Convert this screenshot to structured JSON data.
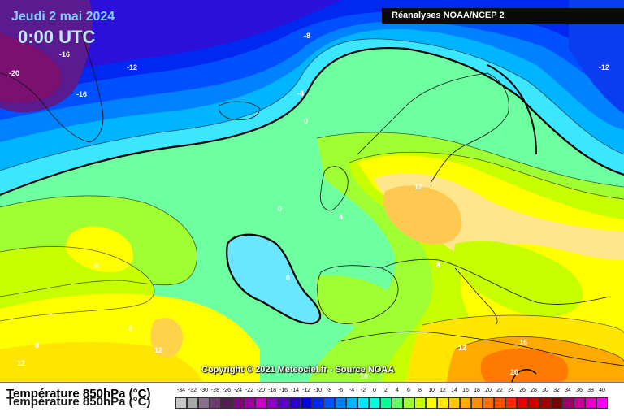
{
  "header": {
    "date": "Jeudi 2 mai 2024",
    "time": "0:00 UTC",
    "source": "Réanalyses NOAA/NCEP 2"
  },
  "footer": {
    "copyright": "Copyright © 2021 Meteociel.fr - Source NOAA",
    "legend_title": "Température 850hPa (°C)"
  },
  "legend": {
    "ticks": [
      "-34",
      "-32",
      "-30",
      "-28",
      "-26",
      "-24",
      "-22",
      "-20",
      "-18",
      "-16",
      "-14",
      "-12",
      "-10",
      "-8",
      "-6",
      "-4",
      "-2",
      "0",
      "2",
      "4",
      "6",
      "8",
      "10",
      "12",
      "14",
      "16",
      "18",
      "20",
      "22",
      "24",
      "26",
      "28",
      "30",
      "32",
      "34",
      "36",
      "38",
      "40"
    ],
    "colors": [
      "#c8c8c8",
      "#a8a8a8",
      "#8c6e8c",
      "#6e3c6e",
      "#501e50",
      "#7a0a7a",
      "#a000a0",
      "#c800c8",
      "#8c00c8",
      "#5a00c8",
      "#2800c8",
      "#0000dc",
      "#0028f0",
      "#0050ff",
      "#0082ff",
      "#00b4ff",
      "#00e6ff",
      "#00ffdc",
      "#00ff96",
      "#64ff64",
      "#a0ff32",
      "#c8ff00",
      "#ffff00",
      "#ffe600",
      "#ffc800",
      "#ffaa00",
      "#ff8c00",
      "#ff6e00",
      "#ff5000",
      "#ff2800",
      "#e60000",
      "#c80000",
      "#a00000",
      "#780000",
      "#a0006e",
      "#c8009a",
      "#e600c8",
      "#ff00ff"
    ]
  },
  "contour_labels": [
    {
      "text": "-20",
      "color": "#ffffff"
    },
    {
      "text": "-16",
      "color": "#ffffff"
    },
    {
      "text": "-16",
      "color": "#ffffff"
    },
    {
      "text": "-12",
      "color": "#ffffff"
    },
    {
      "text": "-8",
      "color": "#ffffff"
    },
    {
      "text": "-4",
      "color": "#ffffff"
    },
    {
      "text": "0",
      "color": "#ffffff"
    },
    {
      "text": "-12",
      "color": "#ffffff"
    },
    {
      "text": "12",
      "color": "#ffffff"
    },
    {
      "text": "4",
      "color": "#ffffff"
    },
    {
      "text": "0",
      "color": "#ffffff"
    },
    {
      "text": "8",
      "color": "#ffffff"
    },
    {
      "text": "0",
      "color": "#ffffff"
    },
    {
      "text": "8",
      "color": "#ffffff"
    },
    {
      "text": "8",
      "color": "#ffffff"
    },
    {
      "text": "8",
      "color": "#ffffff"
    },
    {
      "text": "12",
      "color": "#ffffff"
    },
    {
      "text": "12",
      "color": "#ffffff"
    },
    {
      "text": "12",
      "color": "#ffffff"
    },
    {
      "text": "16",
      "color": "#ffffff"
    },
    {
      "text": "16",
      "color": "#ffffff"
    },
    {
      "text": "20",
      "color": "#ffffff"
    }
  ]
}
